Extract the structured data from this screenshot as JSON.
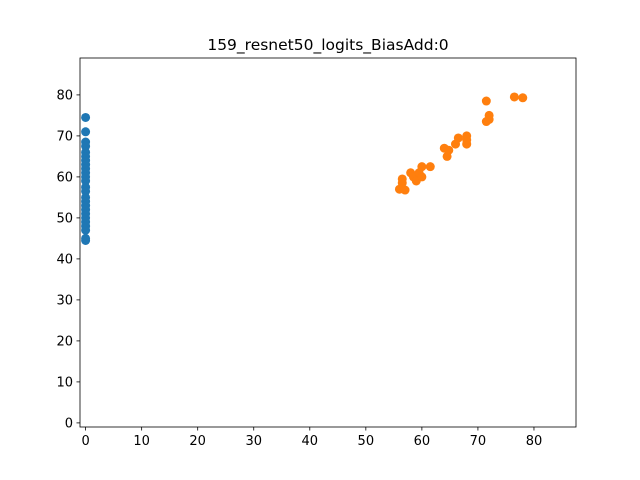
{
  "chart_data": {
    "type": "scatter",
    "title": "159_resnet50_logits_BiasAdd:0",
    "xlabel": "",
    "ylabel": "",
    "xlim": [
      -1,
      87.5
    ],
    "ylim": [
      -1,
      89
    ],
    "xticks": [
      0,
      10,
      20,
      30,
      40,
      50,
      60,
      70,
      80
    ],
    "yticks": [
      0,
      10,
      20,
      30,
      40,
      50,
      60,
      70,
      80
    ],
    "grid": false,
    "series": [
      {
        "color": "#1f77b4",
        "points": [
          [
            0,
            74.5
          ],
          [
            0,
            71.0
          ],
          [
            0,
            68.5
          ],
          [
            0,
            67.5
          ],
          [
            0,
            66.0
          ],
          [
            0,
            65.0
          ],
          [
            0,
            64.0
          ],
          [
            0,
            63.0
          ],
          [
            0,
            62.0
          ],
          [
            0,
            61.0
          ],
          [
            0,
            60.0
          ],
          [
            0,
            59.0
          ],
          [
            0,
            57.5
          ],
          [
            0,
            56.5
          ],
          [
            0,
            55.0
          ],
          [
            0,
            54.0
          ],
          [
            0,
            53.0
          ],
          [
            0,
            52.0
          ],
          [
            0,
            51.0
          ],
          [
            0,
            50.0
          ],
          [
            0,
            49.0
          ],
          [
            0,
            48.0
          ],
          [
            0,
            47.0
          ],
          [
            0,
            45.0
          ],
          [
            0,
            44.5
          ]
        ]
      },
      {
        "color": "#ff7f0e",
        "points": [
          [
            56.0,
            57.0
          ],
          [
            56.5,
            59.5
          ],
          [
            56.5,
            58.5
          ],
          [
            57.0,
            56.8
          ],
          [
            58.0,
            61.0
          ],
          [
            58.5,
            60.0
          ],
          [
            59.0,
            59.0
          ],
          [
            59.5,
            61.0
          ],
          [
            60.0,
            62.5
          ],
          [
            60.0,
            60.0
          ],
          [
            61.5,
            62.5
          ],
          [
            64.0,
            67.0
          ],
          [
            64.5,
            65.0
          ],
          [
            64.8,
            66.5
          ],
          [
            66.0,
            68.0
          ],
          [
            66.5,
            69.5
          ],
          [
            68.0,
            70.0
          ],
          [
            68.0,
            68.0
          ],
          [
            68.0,
            69.0
          ],
          [
            71.5,
            73.5
          ],
          [
            72.0,
            75.0
          ],
          [
            72.0,
            74.0
          ],
          [
            71.5,
            78.5
          ],
          [
            76.5,
            79.5
          ],
          [
            78.0,
            79.3
          ]
        ]
      }
    ]
  }
}
